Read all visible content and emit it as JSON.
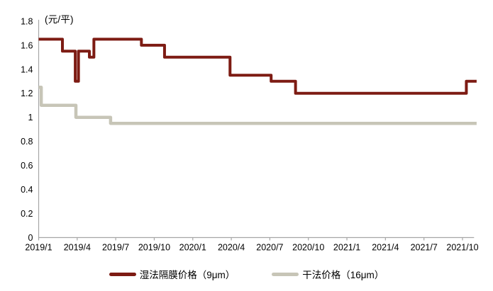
{
  "chart_data": {
    "type": "line",
    "subtype": "step",
    "unit_label": "(元/平)",
    "title": "",
    "xlabel": "",
    "ylabel": "(元/平)",
    "ylim": [
      0,
      1.8
    ],
    "y_tick_step": 0.2,
    "y_tick_labels": [
      "0",
      "0.2",
      "0.4",
      "0.6",
      "0.8",
      "1",
      "1.2",
      "1.4",
      "1.6",
      "1.8"
    ],
    "x_tick_labels": [
      "2019/1",
      "2019/4",
      "2019/7",
      "2019/10",
      "2020/1",
      "2020/4",
      "2020/7",
      "2020/10",
      "2021/1",
      "2021/4",
      "2021/7",
      "2021/10"
    ],
    "x_tick_month_positions": [
      0,
      3,
      6,
      9,
      12,
      15,
      18,
      21,
      24,
      27,
      30,
      33
    ],
    "x_month_range": [
      0,
      34.1
    ],
    "grid": false,
    "legend_position": "bottom",
    "axis_color": "#a6a6a6",
    "text_color": "#000000",
    "series": [
      {
        "name": "湿法隔膜价格（9μm）",
        "color": "#7d1b13",
        "line_width": 4,
        "points_note": "[months since 2019/1, price 元/平] step-after breakpoints",
        "points": [
          [
            0,
            1.65
          ],
          [
            1.85,
            1.55
          ],
          [
            2.85,
            1.3
          ],
          [
            3.1,
            1.55
          ],
          [
            3.95,
            1.5
          ],
          [
            4.3,
            1.65
          ],
          [
            8.0,
            1.6
          ],
          [
            9.8,
            1.5
          ],
          [
            14.9,
            1.35
          ],
          [
            18.1,
            1.3
          ],
          [
            20.0,
            1.2
          ],
          [
            33.3,
            1.3
          ],
          [
            34.1,
            1.3
          ]
        ]
      },
      {
        "name": "干法价格（16μm）",
        "color": "#c7c5b7",
        "line_width": 4.5,
        "points_note": "[months since 2019/1, price 元/平] step-after breakpoints",
        "points": [
          [
            0,
            1.25
          ],
          [
            0.2,
            1.1
          ],
          [
            2.9,
            1.0
          ],
          [
            5.6,
            0.95
          ],
          [
            34.1,
            0.95
          ]
        ]
      }
    ]
  }
}
